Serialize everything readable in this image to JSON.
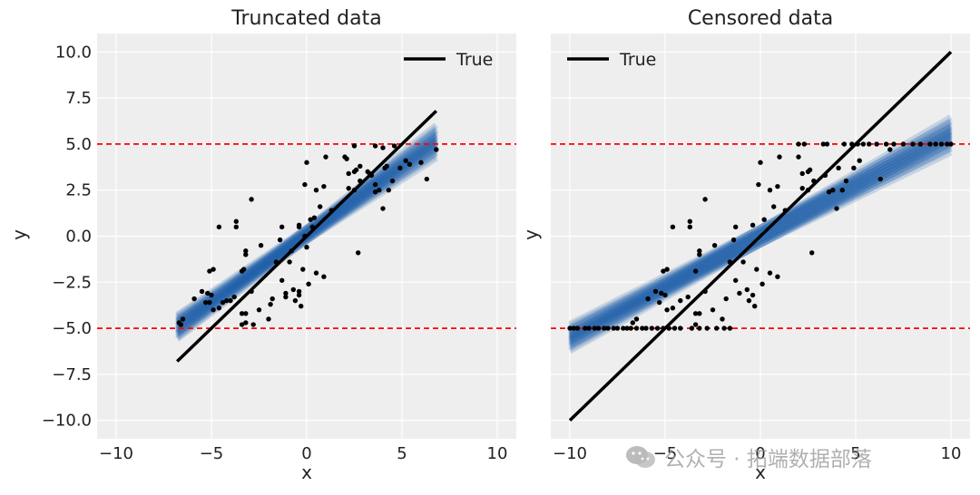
{
  "y_label": "y",
  "x_label": "x",
  "watermark": "公众号 · 拓端数据部落",
  "chart_data": [
    {
      "type": "scatter",
      "title": "Truncated data",
      "xlabel": "x",
      "ylabel": "y",
      "xlim": [
        -11,
        11
      ],
      "ylim": [
        -11,
        11
      ],
      "xticks": [
        -10,
        -5,
        0,
        5,
        10
      ],
      "yticks": [
        -10.0,
        -7.5,
        -5.0,
        -2.5,
        0.0,
        2.5,
        5.0,
        7.5,
        10.0
      ],
      "xtick_labels": [
        "−10",
        "−5",
        "0",
        "5",
        "10"
      ],
      "ytick_labels": [
        "−10.0",
        "−7.5",
        "−5.0",
        "−2.5",
        "0.0",
        "2.5",
        "5.0",
        "7.5",
        "10.0"
      ],
      "grid": true,
      "legend": {
        "position": "top-right",
        "entries": [
          "True"
        ]
      },
      "true_line": {
        "name": "True",
        "x": [
          -6.8,
          6.8
        ],
        "y": [
          -6.8,
          6.8
        ],
        "color": "#000000"
      },
      "posterior_band": {
        "intercept": 0.1,
        "slope_min": 0.66,
        "slope_max": 0.82,
        "half_width": 0.35,
        "x_range": [
          -6.8,
          6.8
        ],
        "color": "#1f5fa8"
      },
      "bounds": {
        "y": [
          -5,
          5
        ],
        "color": "#ff0000",
        "style": "dashed"
      },
      "points": [
        [
          -6.7,
          -4.7
        ],
        [
          -6.5,
          -4.5
        ],
        [
          -6.6,
          -4.8
        ],
        [
          -5.9,
          -3.4
        ],
        [
          -5.5,
          -3.0
        ],
        [
          -5.2,
          -3.1
        ],
        [
          -5.0,
          -3.2
        ],
        [
          -5.3,
          -3.6
        ],
        [
          -5.1,
          -3.6
        ],
        [
          -4.9,
          -4.0
        ],
        [
          -4.6,
          -3.9
        ],
        [
          -5.1,
          -1.9
        ],
        [
          -4.9,
          -1.8
        ],
        [
          -4.6,
          0.5
        ],
        [
          -4.4,
          -3.6
        ],
        [
          -4.2,
          -3.5
        ],
        [
          -4.0,
          -3.5
        ],
        [
          -3.8,
          -3.3
        ],
        [
          -3.7,
          0.5
        ],
        [
          -3.7,
          0.8
        ],
        [
          -3.4,
          -4.8
        ],
        [
          -3.2,
          -4.7
        ],
        [
          -3.4,
          -4.2
        ],
        [
          -3.2,
          -4.2
        ],
        [
          -3.4,
          -1.9
        ],
        [
          -3.3,
          -1.8
        ],
        [
          -3.2,
          -1.0
        ],
        [
          -3.2,
          -0.8
        ],
        [
          -2.9,
          -3.0
        ],
        [
          -2.8,
          -4.8
        ],
        [
          -2.9,
          2.0
        ],
        [
          -2.5,
          -4.0
        ],
        [
          -2.0,
          -4.5
        ],
        [
          -1.9,
          -3.7
        ],
        [
          -1.8,
          -3.4
        ],
        [
          -1.6,
          -1.4
        ],
        [
          -1.3,
          0.5
        ],
        [
          -1.3,
          -2.4
        ],
        [
          -1.1,
          -3.1
        ],
        [
          -1.1,
          -3.3
        ],
        [
          -0.9,
          -1.4
        ],
        [
          -0.8,
          -0.8
        ],
        [
          -0.7,
          -2.9
        ],
        [
          -0.6,
          -3.5
        ],
        [
          -0.4,
          -3.2
        ],
        [
          -0.4,
          -3.0
        ],
        [
          -0.4,
          0.6
        ],
        [
          -0.4,
          0.5
        ],
        [
          -0.3,
          -3.8
        ],
        [
          -0.2,
          -1.8
        ],
        [
          -0.1,
          0.0
        ],
        [
          -0.1,
          2.8
        ],
        [
          0.0,
          4.0
        ],
        [
          0.1,
          -2.6
        ],
        [
          0.2,
          0.9
        ],
        [
          0.3,
          0.5
        ],
        [
          0.4,
          1.0
        ],
        [
          0.5,
          2.5
        ],
        [
          0.5,
          -2.0
        ],
        [
          0.9,
          -2.2
        ],
        [
          0.9,
          2.7
        ],
        [
          1.0,
          4.3
        ],
        [
          2.0,
          4.3
        ],
        [
          2.1,
          4.2
        ],
        [
          2.2,
          3.4
        ],
        [
          2.2,
          2.6
        ],
        [
          2.5,
          3.5
        ],
        [
          2.5,
          2.5
        ],
        [
          2.5,
          4.9
        ],
        [
          2.6,
          3.6
        ],
        [
          2.7,
          -0.9
        ],
        [
          2.8,
          3.0
        ],
        [
          2.8,
          3.8
        ],
        [
          3.3,
          3.4
        ],
        [
          3.4,
          3.3
        ],
        [
          3.6,
          2.4
        ],
        [
          3.6,
          2.8
        ],
        [
          3.6,
          4.9
        ],
        [
          3.8,
          2.5
        ],
        [
          4.0,
          4.8
        ],
        [
          4.0,
          1.5
        ],
        [
          4.1,
          3.7
        ],
        [
          4.2,
          3.8
        ],
        [
          4.3,
          2.5
        ],
        [
          4.5,
          3.0
        ],
        [
          4.6,
          4.9
        ],
        [
          4.9,
          3.7
        ],
        [
          5.2,
          4.1
        ],
        [
          5.4,
          3.9
        ],
        [
          6.0,
          4.0
        ],
        [
          6.3,
          3.1
        ],
        [
          6.8,
          4.7
        ],
        [
          -2.4,
          -0.5
        ],
        [
          -1.4,
          -0.2
        ],
        [
          0.0,
          -0.6
        ],
        [
          1.3,
          1.4
        ],
        [
          0.7,
          1.6
        ],
        [
          3.2,
          3.5
        ]
      ]
    },
    {
      "type": "scatter",
      "title": "Censored data",
      "xlabel": "x",
      "ylabel": "y",
      "xlim": [
        -11,
        11
      ],
      "ylim": [
        -11,
        11
      ],
      "xticks": [
        -10,
        -5,
        0,
        5,
        10
      ],
      "yticks": [
        -10.0,
        -7.5,
        -5.0,
        -2.5,
        0.0,
        2.5,
        5.0,
        7.5,
        10.0
      ],
      "xtick_labels": [
        "−10",
        "−5",
        "0",
        "5",
        "10"
      ],
      "ytick_labels": [
        "",
        "",
        "",
        "",
        "",
        "",
        "",
        "",
        ""
      ],
      "grid": true,
      "legend": {
        "position": "top-left",
        "entries": [
          "True"
        ]
      },
      "true_line": {
        "name": "True",
        "x": [
          -10,
          10
        ],
        "y": [
          -10,
          10
        ],
        "color": "#000000"
      },
      "posterior_band": {
        "intercept": 0.0,
        "slope_min": 0.5,
        "slope_max": 0.6,
        "half_width": 0.45,
        "x_range": [
          -10,
          10
        ],
        "color": "#1f5fa8"
      },
      "bounds": {
        "y": [
          -5,
          5
        ],
        "color": "#ff0000",
        "style": "dashed"
      },
      "points": [
        [
          -10.0,
          -5.0
        ],
        [
          -9.8,
          -5.0
        ],
        [
          -9.6,
          -5.0
        ],
        [
          -9.2,
          -5.0
        ],
        [
          -9.0,
          -5.0
        ],
        [
          -8.7,
          -5.0
        ],
        [
          -8.5,
          -5.0
        ],
        [
          -8.2,
          -5.0
        ],
        [
          -8.0,
          -5.0
        ],
        [
          -7.7,
          -5.0
        ],
        [
          -7.5,
          -5.0
        ],
        [
          -7.2,
          -5.0
        ],
        [
          -7.0,
          -5.0
        ],
        [
          -6.8,
          -5.0
        ],
        [
          -6.5,
          -5.0
        ],
        [
          -6.2,
          -5.0
        ],
        [
          -6.0,
          -5.0
        ],
        [
          -5.7,
          -5.0
        ],
        [
          -5.4,
          -5.0
        ],
        [
          -5.1,
          -5.0
        ],
        [
          -4.8,
          -5.0
        ],
        [
          -4.5,
          -5.0
        ],
        [
          -4.2,
          -5.0
        ],
        [
          -3.6,
          -5.0
        ],
        [
          -3.2,
          -5.0
        ],
        [
          -2.8,
          -5.0
        ],
        [
          -2.3,
          -5.0
        ],
        [
          -1.9,
          -5.0
        ],
        [
          -1.6,
          -5.0
        ],
        [
          -6.7,
          -4.7
        ],
        [
          -6.5,
          -4.5
        ],
        [
          -5.9,
          -3.4
        ],
        [
          -5.5,
          -3.0
        ],
        [
          -5.2,
          -3.1
        ],
        [
          -5.0,
          -3.2
        ],
        [
          -5.3,
          -3.6
        ],
        [
          -4.9,
          -4.0
        ],
        [
          -4.6,
          -3.9
        ],
        [
          -5.1,
          -1.9
        ],
        [
          -4.9,
          -1.8
        ],
        [
          -4.6,
          0.5
        ],
        [
          -4.2,
          -3.5
        ],
        [
          -3.8,
          -3.3
        ],
        [
          -3.7,
          0.5
        ],
        [
          -3.7,
          0.8
        ],
        [
          -3.4,
          -4.8
        ],
        [
          -3.4,
          -4.2
        ],
        [
          -3.2,
          -4.2
        ],
        [
          -3.4,
          -1.9
        ],
        [
          -3.2,
          -1.0
        ],
        [
          -3.2,
          -0.8
        ],
        [
          -2.9,
          -3.0
        ],
        [
          -2.9,
          2.0
        ],
        [
          -2.5,
          -4.0
        ],
        [
          -2.0,
          -4.5
        ],
        [
          -1.8,
          -3.4
        ],
        [
          -1.6,
          -1.4
        ],
        [
          -1.3,
          0.5
        ],
        [
          -1.3,
          -2.4
        ],
        [
          -1.1,
          -3.1
        ],
        [
          -0.9,
          -1.4
        ],
        [
          -0.7,
          -2.9
        ],
        [
          -0.6,
          -3.5
        ],
        [
          -0.4,
          -3.2
        ],
        [
          -0.4,
          0.6
        ],
        [
          -0.3,
          -3.8
        ],
        [
          -0.2,
          -1.8
        ],
        [
          -0.1,
          2.8
        ],
        [
          0.0,
          4.0
        ],
        [
          0.1,
          -2.6
        ],
        [
          0.2,
          0.9
        ],
        [
          0.5,
          2.5
        ],
        [
          0.5,
          -2.0
        ],
        [
          0.9,
          -2.2
        ],
        [
          0.9,
          2.7
        ],
        [
          1.0,
          4.3
        ],
        [
          2.0,
          4.3
        ],
        [
          2.2,
          3.4
        ],
        [
          2.2,
          2.6
        ],
        [
          2.5,
          3.5
        ],
        [
          2.5,
          2.5
        ],
        [
          2.6,
          3.6
        ],
        [
          2.7,
          -0.9
        ],
        [
          2.8,
          3.0
        ],
        [
          3.4,
          3.3
        ],
        [
          3.6,
          2.4
        ],
        [
          3.8,
          2.5
        ],
        [
          4.0,
          1.5
        ],
        [
          4.1,
          3.7
        ],
        [
          4.3,
          2.5
        ],
        [
          4.5,
          3.0
        ],
        [
          4.9,
          3.7
        ],
        [
          5.2,
          4.1
        ],
        [
          6.3,
          3.1
        ],
        [
          6.8,
          4.7
        ],
        [
          2.0,
          5.0
        ],
        [
          2.3,
          5.0
        ],
        [
          3.3,
          5.0
        ],
        [
          3.5,
          5.0
        ],
        [
          4.4,
          5.0
        ],
        [
          4.8,
          5.0
        ],
        [
          5.1,
          5.0
        ],
        [
          5.4,
          5.0
        ],
        [
          5.7,
          5.0
        ],
        [
          6.1,
          5.0
        ],
        [
          6.6,
          5.0
        ],
        [
          7.0,
          5.0
        ],
        [
          7.5,
          5.0
        ],
        [
          8.0,
          5.0
        ],
        [
          8.4,
          5.0
        ],
        [
          8.9,
          5.0
        ],
        [
          9.2,
          5.0
        ],
        [
          9.5,
          5.0
        ],
        [
          9.8,
          5.0
        ],
        [
          10.0,
          5.0
        ],
        [
          -2.4,
          -0.5
        ],
        [
          -1.4,
          -0.2
        ],
        [
          1.3,
          1.4
        ],
        [
          0.7,
          1.6
        ]
      ]
    }
  ]
}
